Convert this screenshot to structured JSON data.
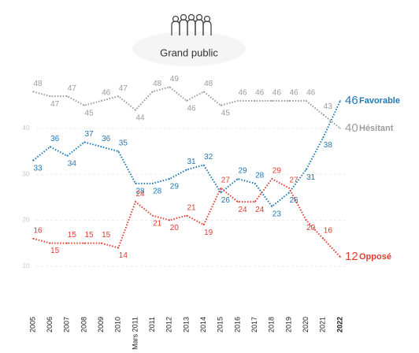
{
  "chart_data": {
    "type": "line",
    "title": "Grand public",
    "categories": [
      "2005",
      "2006",
      "2007",
      "2008",
      "2009",
      "2010",
      "Mars 2011",
      "2011",
      "2012",
      "2013",
      "2014",
      "2015",
      "2016",
      "2017",
      "2018",
      "2019",
      "2020",
      "2021",
      "2022"
    ],
    "series": [
      {
        "name": "Favorable",
        "color": "#1f77b4",
        "values": [
          33,
          36,
          34,
          37,
          36,
          35,
          28,
          28,
          29,
          31,
          32,
          26,
          29,
          28,
          23,
          26,
          31,
          38,
          46
        ]
      },
      {
        "name": "Hésitant",
        "color": "#9b9b9b",
        "values": [
          48,
          47,
          47,
          45,
          46,
          47,
          44,
          48,
          49,
          46,
          48,
          45,
          46,
          46,
          46,
          46,
          46,
          43,
          40
        ]
      },
      {
        "name": "Opposé",
        "color": "#e03c31",
        "values": [
          16,
          15,
          15,
          15,
          15,
          14,
          24,
          21,
          20,
          21,
          19,
          27,
          24,
          24,
          29,
          27,
          20,
          16,
          12
        ]
      }
    ],
    "ylim": [
      0,
      52
    ],
    "yticks": [
      10,
      20,
      30,
      40
    ],
    "grid": true
  }
}
